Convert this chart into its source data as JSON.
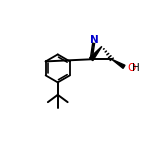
{
  "background": "#ffffff",
  "bond_color": "#000000",
  "N_color": "#0000cd",
  "O_color": "#ff0000",
  "figsize": [
    1.52,
    1.52
  ],
  "dpi": 100,
  "xlim": [
    0,
    10
  ],
  "ylim": [
    0,
    10
  ],
  "lw": 1.4,
  "lw_ring": 1.3
}
